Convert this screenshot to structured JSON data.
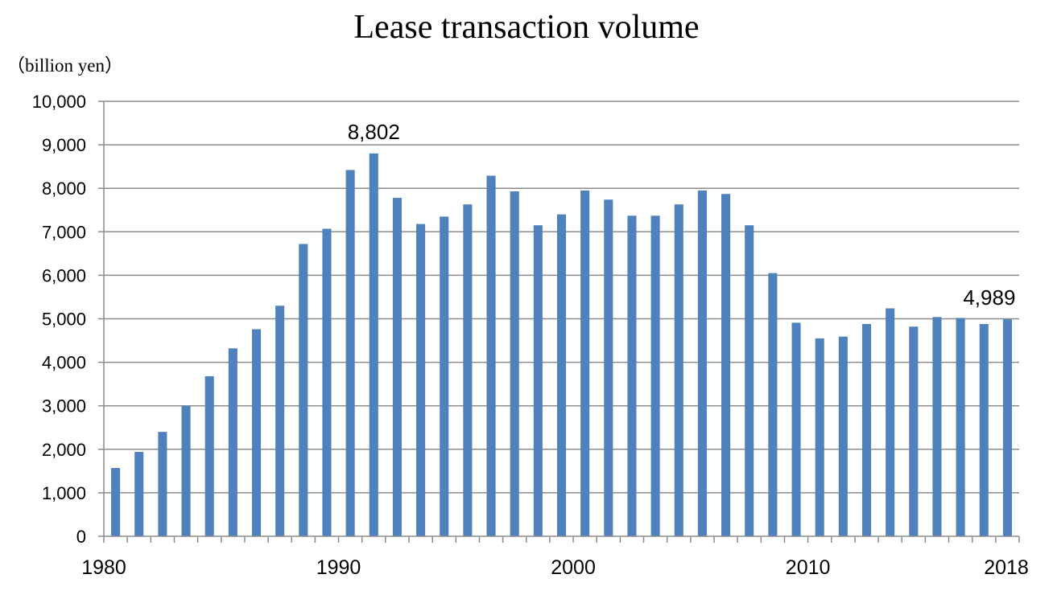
{
  "chart_data": {
    "type": "bar",
    "title": "Lease transaction volume",
    "unit_label": "（billion yen）",
    "xlabel": "",
    "ylabel": "",
    "ylim": [
      0,
      10000
    ],
    "yticks": [
      0,
      1000,
      2000,
      3000,
      4000,
      5000,
      6000,
      7000,
      8000,
      9000,
      10000
    ],
    "ytick_labels": [
      "0",
      "1,000",
      "2,000",
      "3,000",
      "4,000",
      "5,000",
      "6,000",
      "7,000",
      "8,000",
      "9,000",
      "10,000"
    ],
    "xtick_labels": [
      {
        "year": 1980,
        "label": "1980"
      },
      {
        "year": 1990,
        "label": "1990"
      },
      {
        "year": 2000,
        "label": "2000"
      },
      {
        "year": 2010,
        "label": "2010"
      },
      {
        "year": 2018,
        "label": "2018"
      }
    ],
    "grid": true,
    "bar_color": "#4F81BD",
    "categories": [
      1980,
      1981,
      1982,
      1983,
      1984,
      1985,
      1986,
      1987,
      1988,
      1989,
      1990,
      1991,
      1992,
      1993,
      1994,
      1995,
      1996,
      1997,
      1998,
      1999,
      2000,
      2001,
      2002,
      2003,
      2004,
      2005,
      2006,
      2007,
      2008,
      2009,
      2010,
      2011,
      2012,
      2013,
      2014,
      2015,
      2016,
      2017,
      2018
    ],
    "values": [
      1570,
      1940,
      2400,
      3000,
      3680,
      4320,
      4760,
      5300,
      6720,
      7070,
      8420,
      8802,
      7780,
      7180,
      7350,
      7630,
      8290,
      7930,
      7150,
      7400,
      7950,
      7740,
      7370,
      7370,
      7630,
      7950,
      7870,
      7150,
      6050,
      4910,
      4550,
      4590,
      4880,
      5240,
      4820,
      5040,
      5020,
      4880,
      4989
    ],
    "data_labels": [
      {
        "year": 1991,
        "text": "8,802"
      },
      {
        "year": 2018,
        "text": "4,989"
      }
    ]
  }
}
